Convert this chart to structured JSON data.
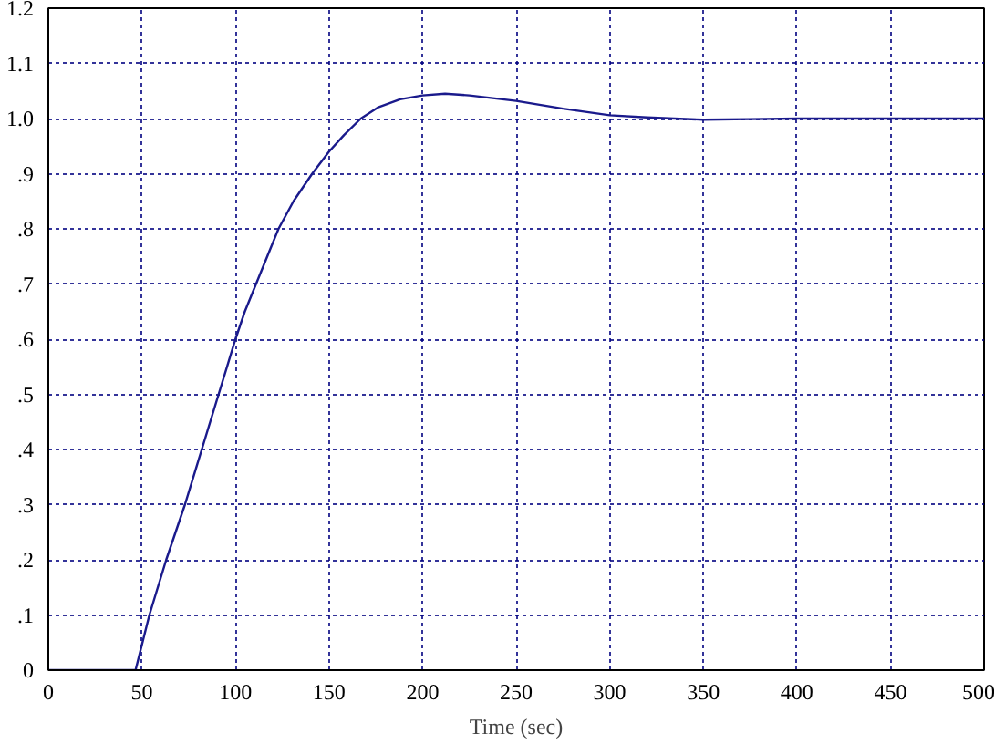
{
  "chart_data": {
    "type": "line",
    "xlabel": "Time (sec)",
    "x": [
      0,
      46.6,
      54,
      63,
      73,
      82,
      91,
      100,
      105,
      111,
      117,
      123,
      131,
      141,
      150,
      158,
      167,
      176,
      188,
      200,
      212,
      225,
      250,
      275,
      300,
      320,
      350,
      375,
      400,
      450,
      500
    ],
    "series": [
      {
        "color": "#1a1a8c",
        "values": [
          0,
          0,
          0.1,
          0.2,
          0.3,
          0.4,
          0.5,
          0.6,
          0.65,
          0.7,
          0.75,
          0.8,
          0.85,
          0.9,
          0.94,
          0.97,
          1.0,
          1.02,
          1.035,
          1.042,
          1.045,
          1.042,
          1.032,
          1.018,
          1.006,
          1.002,
          0.998,
          0.999,
          1.0,
          1.0,
          1.0
        ]
      }
    ],
    "xlim": [
      0,
      500
    ],
    "xticks": [
      0,
      50,
      100,
      150,
      200,
      250,
      300,
      350,
      400,
      450,
      500
    ],
    "ylim": [
      0,
      1.2
    ],
    "yticks": [
      0,
      {
        "value": 0.1,
        "label": ".1"
      },
      {
        "value": 0.2,
        "label": ".2"
      },
      {
        "value": 0.3,
        "label": ".3"
      },
      {
        "value": 0.4,
        "label": ".4"
      },
      {
        "value": 0.5,
        "label": ".5"
      },
      {
        "value": 0.6,
        "label": ".6"
      },
      {
        "value": 0.7,
        "label": ".7"
      },
      {
        "value": 0.8,
        "label": ".8"
      },
      {
        "value": 0.9,
        "label": ".9"
      },
      {
        "value": 1.0,
        "label": "1.0"
      },
      {
        "value": 1.1,
        "label": "1.1"
      },
      {
        "value": 1.2,
        "label": "1.2"
      }
    ],
    "grid": true,
    "line_style": "solid",
    "marker": "none"
  }
}
